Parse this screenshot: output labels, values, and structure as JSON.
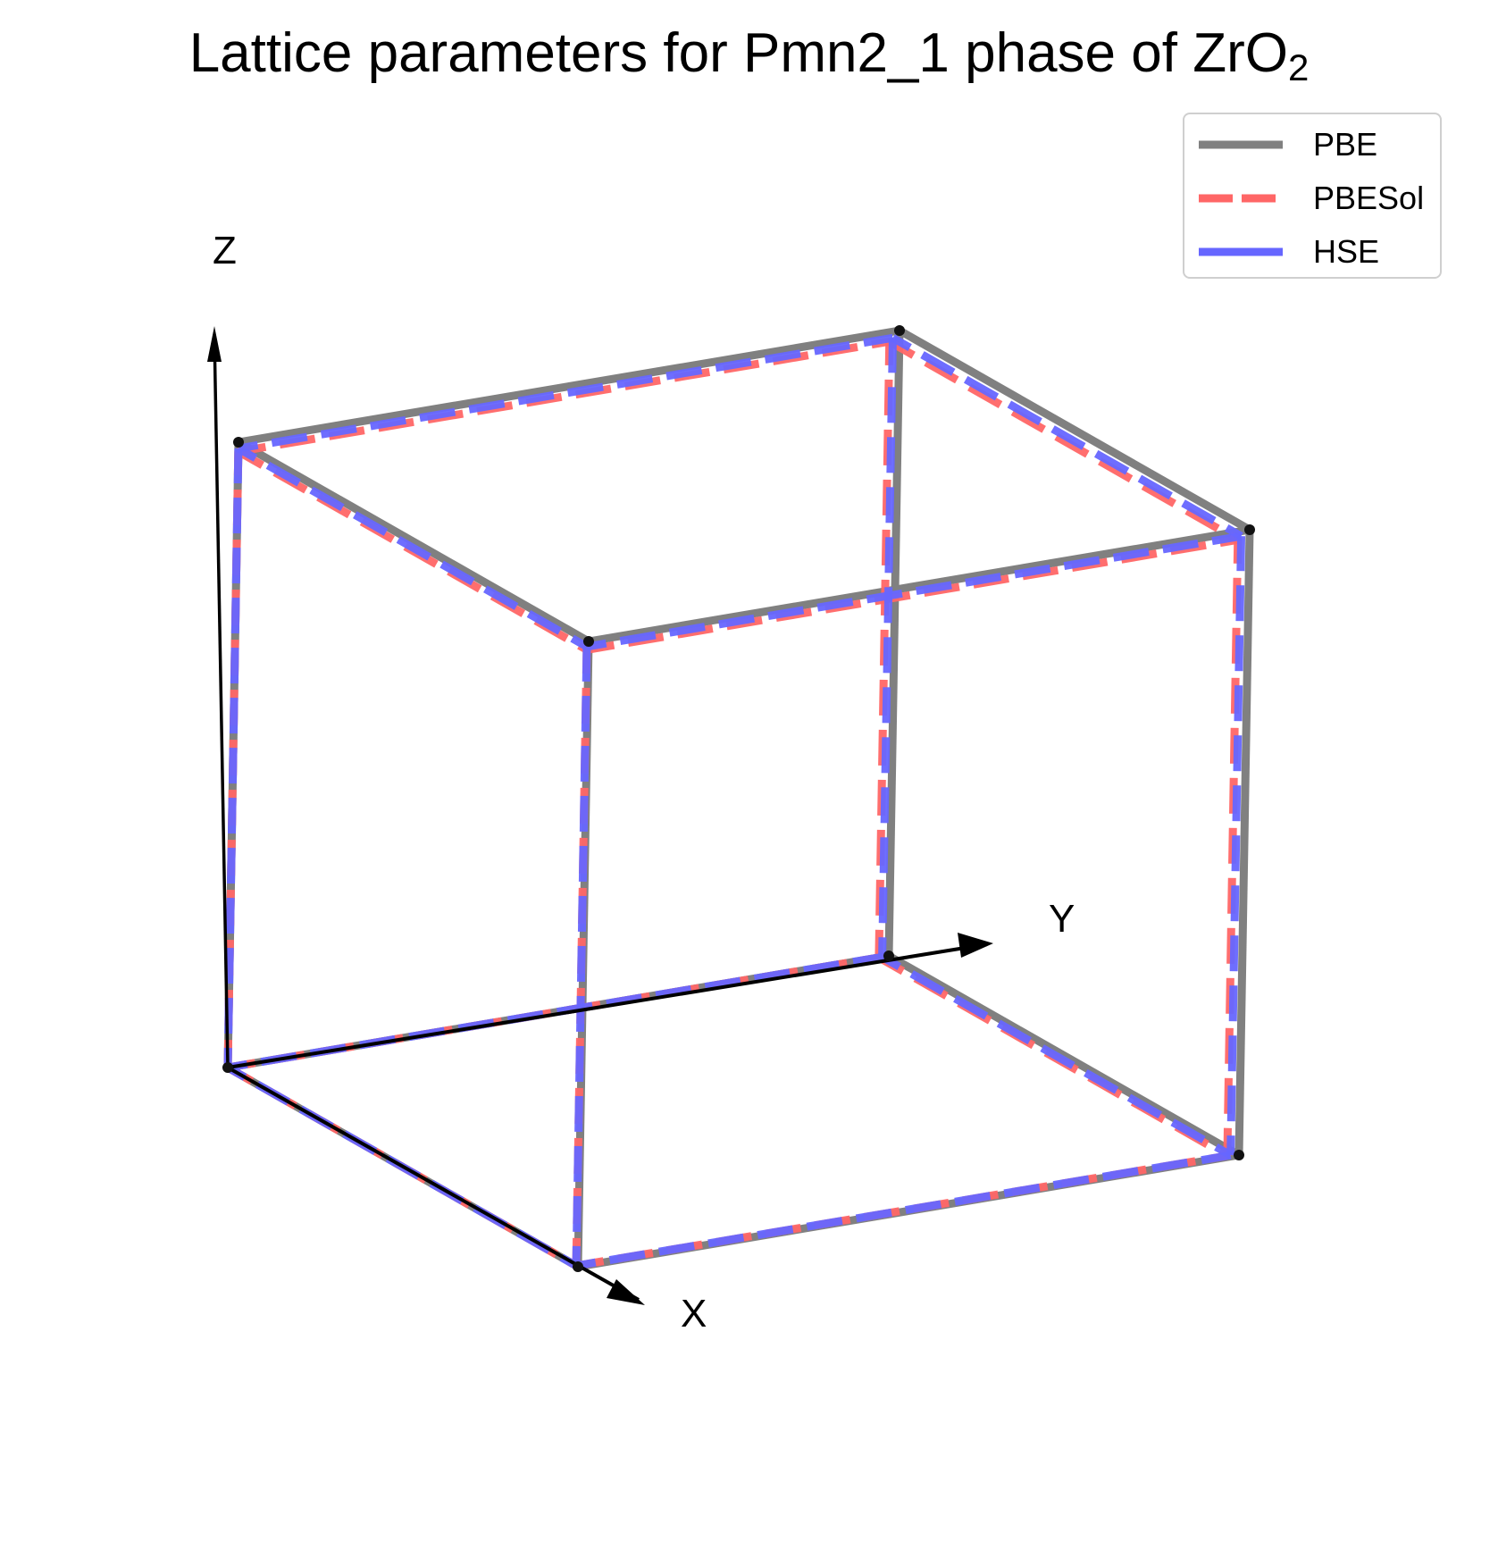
{
  "title_main": "Lattice parameters for Pmn2_1 phase of ZrO",
  "title_sub": "2",
  "chart_data": {
    "type": "3d-wireframe",
    "title": "Lattice parameters for Pmn2_1 phase of ZrO2",
    "axes": {
      "x": "X",
      "y": "Y",
      "z": "Z"
    },
    "legend_placement": "top-right",
    "series": [
      {
        "name": "PBE",
        "color": "#808080",
        "dash": "solid",
        "a": 1.0,
        "b": 1.0,
        "c": 1.0
      },
      {
        "name": "PBESol",
        "color": "#ff6666",
        "dash": "dashed",
        "a": 0.995,
        "b": 0.985,
        "c": 0.985
      },
      {
        "name": "HSE",
        "color": "#6666ff",
        "dash": "dashed",
        "a": 0.995,
        "b": 0.99,
        "c": 0.99
      }
    ]
  }
}
